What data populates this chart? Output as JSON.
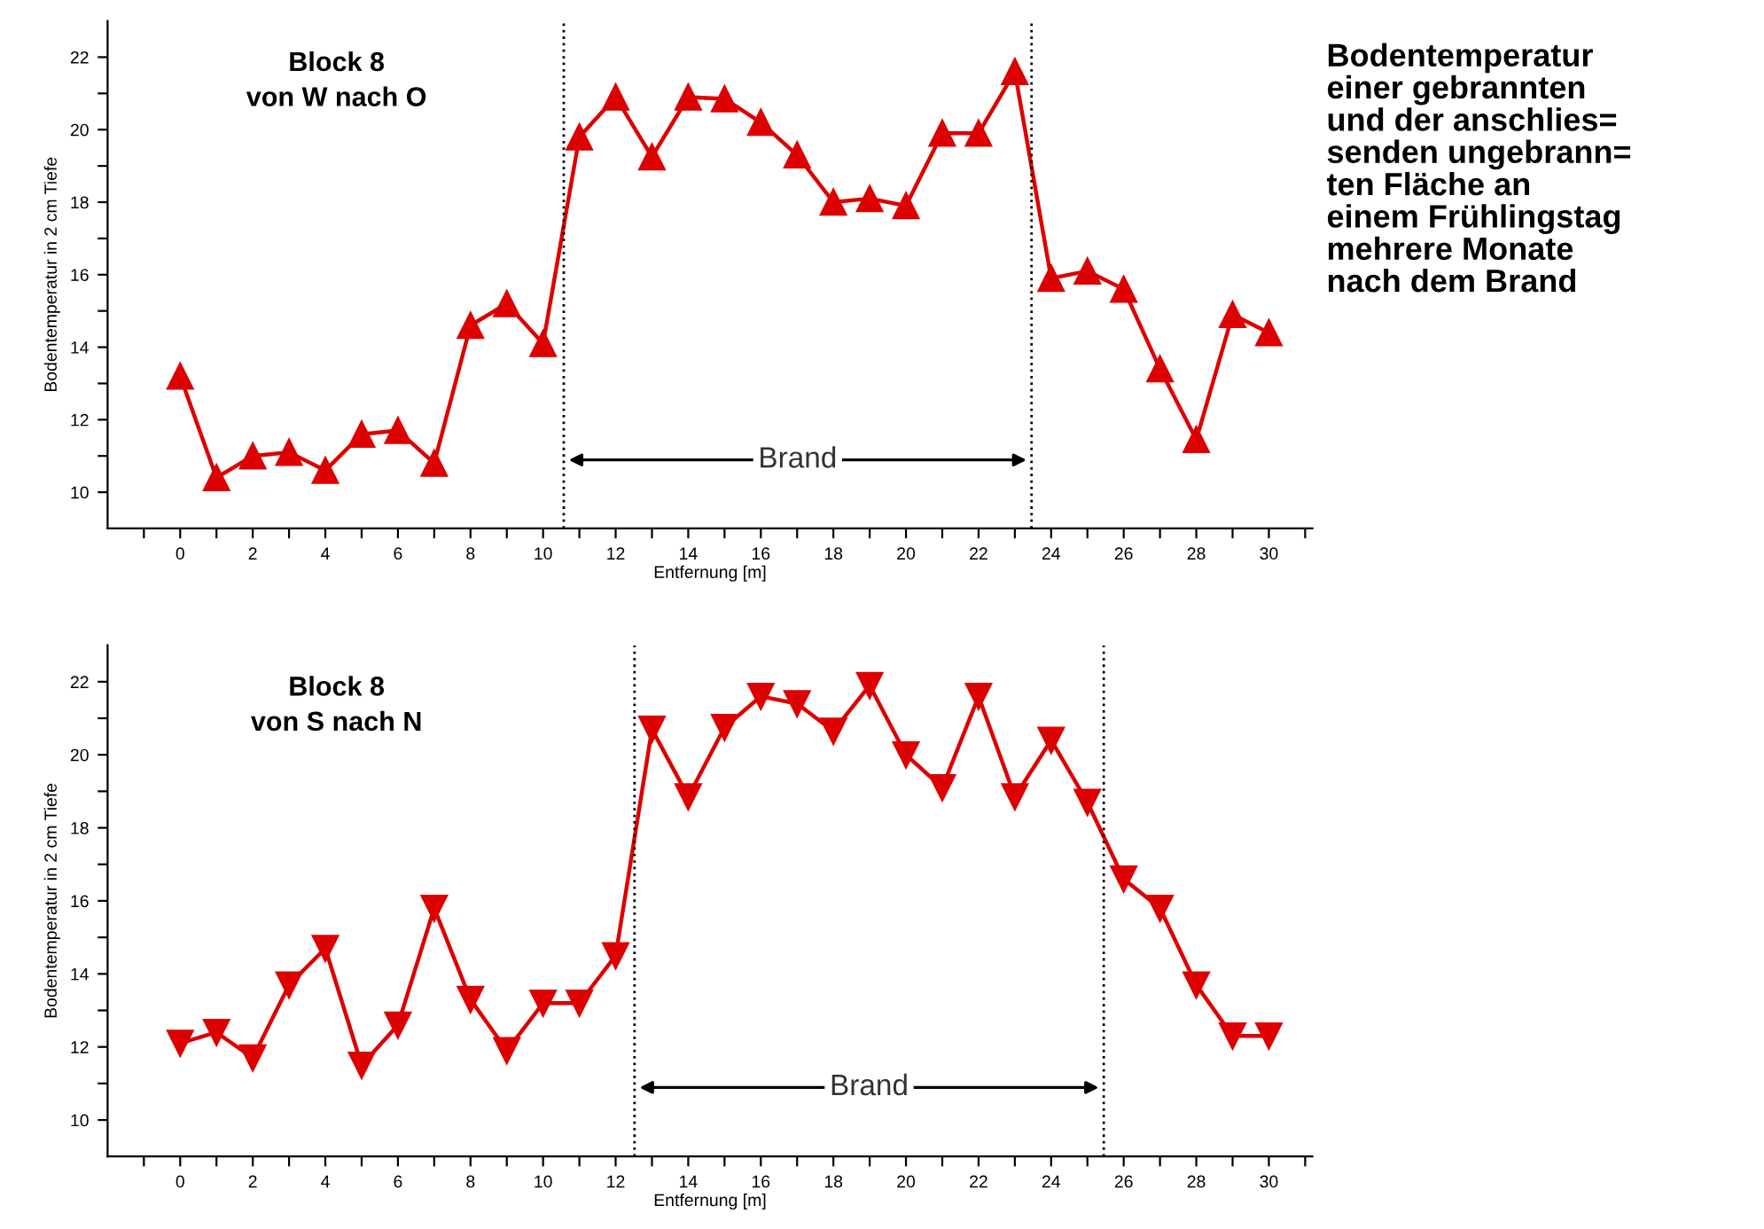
{
  "chart_data": [
    {
      "type": "line",
      "title": "Block 8\nvon W nach O",
      "xlabel": "Entfernung [m]",
      "ylabel": "Bodentemperatur in 2 cm Tiefe",
      "x": [
        0,
        1,
        2,
        3,
        4,
        5,
        6,
        7,
        8,
        9,
        10,
        11,
        12,
        13,
        14,
        15,
        16,
        17,
        18,
        19,
        20,
        21,
        22,
        23,
        24,
        25,
        26,
        27,
        28,
        29,
        30
      ],
      "series": [
        {
          "color": "#dd0000",
          "marker": "triangle",
          "values": [
            13.2,
            10.4,
            11.0,
            11.1,
            10.6,
            11.6,
            11.7,
            10.8,
            14.6,
            15.2,
            14.1,
            19.8,
            20.9,
            19.25,
            20.9,
            20.85,
            20.2,
            19.3,
            18.0,
            18.1,
            17.9,
            19.9,
            19.9,
            21.6,
            15.9,
            16.1,
            15.6,
            13.4,
            11.45,
            14.9,
            14.4
          ]
        }
      ],
      "xlim": [
        -2,
        31.2
      ],
      "ylim": [
        9,
        23
      ],
      "xticks": [
        {
          "value": -1,
          "label": null
        },
        0,
        {
          "value": 1,
          "label": null
        },
        2,
        {
          "value": 3,
          "label": null
        },
        4,
        {
          "value": 5,
          "label": null
        },
        6,
        {
          "value": 7,
          "label": null
        },
        8,
        {
          "value": 9,
          "label": null
        },
        10,
        {
          "value": 11,
          "label": null
        },
        12,
        {
          "value": 13,
          "label": null
        },
        14,
        {
          "value": 15,
          "label": null
        },
        16,
        {
          "value": 17,
          "label": null
        },
        18,
        {
          "value": 19,
          "label": null
        },
        20,
        {
          "value": 21,
          "label": null
        },
        22,
        {
          "value": 23,
          "label": null
        },
        24,
        {
          "value": 25,
          "label": null
        },
        26,
        {
          "value": 27,
          "label": null
        },
        28,
        {
          "value": 29,
          "label": null
        },
        30,
        {
          "value": 31,
          "label": null
        }
      ],
      "yticks": [
        10,
        {
          "value": 11,
          "label": null
        },
        12,
        {
          "value": 13,
          "label": null
        },
        14,
        {
          "value": 15,
          "label": null
        },
        16,
        {
          "value": 17,
          "label": null
        },
        18,
        {
          "value": 19,
          "label": null
        },
        20,
        {
          "value": 21,
          "label": null
        },
        22
      ],
      "ref_lines": [
        {
          "axis": "x",
          "value": 10.57,
          "color": "#000000",
          "line_style": "dotted"
        },
        {
          "axis": "x",
          "value": 23.46,
          "color": "#000000",
          "line_style": "dotted"
        }
      ],
      "annotations": [
        "Brand",
        "Bodentemperatur\neiner gebrannten\nund der anschlies=\nsenden ungebrann=\nten Fläche an\neinem Frühlingstag\nmehrere Monate\nnach dem Brand"
      ],
      "grid": false,
      "legend": false
    },
    {
      "type": "line",
      "title": "Block 8\nvon S nach N",
      "xlabel": "Entfernung [m]",
      "ylabel": "Bodentemperatur in 2 cm Tiefe",
      "x": [
        0,
        1,
        2,
        3,
        4,
        5,
        6,
        7,
        8,
        9,
        10,
        11,
        12,
        13,
        14,
        15,
        16,
        17,
        18,
        19,
        20,
        21,
        22,
        23,
        24,
        25,
        26,
        27,
        28,
        29,
        30
      ],
      "series": [
        {
          "color": "#dd0000",
          "marker": "triangle_down",
          "values": [
            12.1,
            12.4,
            11.7,
            13.7,
            14.7,
            11.5,
            12.6,
            15.8,
            13.3,
            11.9,
            13.2,
            13.2,
            14.5,
            20.7,
            18.85,
            20.75,
            21.6,
            21.4,
            20.65,
            21.9,
            20.0,
            19.1,
            21.6,
            18.85,
            20.4,
            18.7,
            16.6,
            15.8,
            13.7,
            12.3,
            12.3
          ]
        }
      ],
      "xlim": [
        -2,
        31.2
      ],
      "ylim": [
        9,
        23
      ],
      "xticks": [
        {
          "value": -1,
          "label": null
        },
        0,
        {
          "value": 1,
          "label": null
        },
        2,
        {
          "value": 3,
          "label": null
        },
        4,
        {
          "value": 5,
          "label": null
        },
        6,
        {
          "value": 7,
          "label": null
        },
        8,
        {
          "value": 9,
          "label": null
        },
        10,
        {
          "value": 11,
          "label": null
        },
        12,
        {
          "value": 13,
          "label": null
        },
        14,
        {
          "value": 15,
          "label": null
        },
        16,
        {
          "value": 17,
          "label": null
        },
        18,
        {
          "value": 19,
          "label": null
        },
        20,
        {
          "value": 21,
          "label": null
        },
        22,
        {
          "value": 23,
          "label": null
        },
        24,
        {
          "value": 25,
          "label": null
        },
        26,
        {
          "value": 27,
          "label": null
        },
        28,
        {
          "value": 29,
          "label": null
        },
        30,
        {
          "value": 31,
          "label": null
        }
      ],
      "yticks": [
        10,
        {
          "value": 11,
          "label": null
        },
        12,
        {
          "value": 13,
          "label": null
        },
        14,
        {
          "value": 15,
          "label": null
        },
        16,
        {
          "value": 17,
          "label": null
        },
        18,
        {
          "value": 19,
          "label": null
        },
        20,
        {
          "value": 21,
          "label": null
        },
        22
      ],
      "ref_lines": [
        {
          "axis": "x",
          "value": 12.52,
          "color": "#000000",
          "line_style": "dotted"
        },
        {
          "axis": "x",
          "value": 25.45,
          "color": "#000000",
          "line_style": "dotted"
        }
      ],
      "annotations": [
        "Brand"
      ],
      "grid": false,
      "legend": false
    }
  ]
}
